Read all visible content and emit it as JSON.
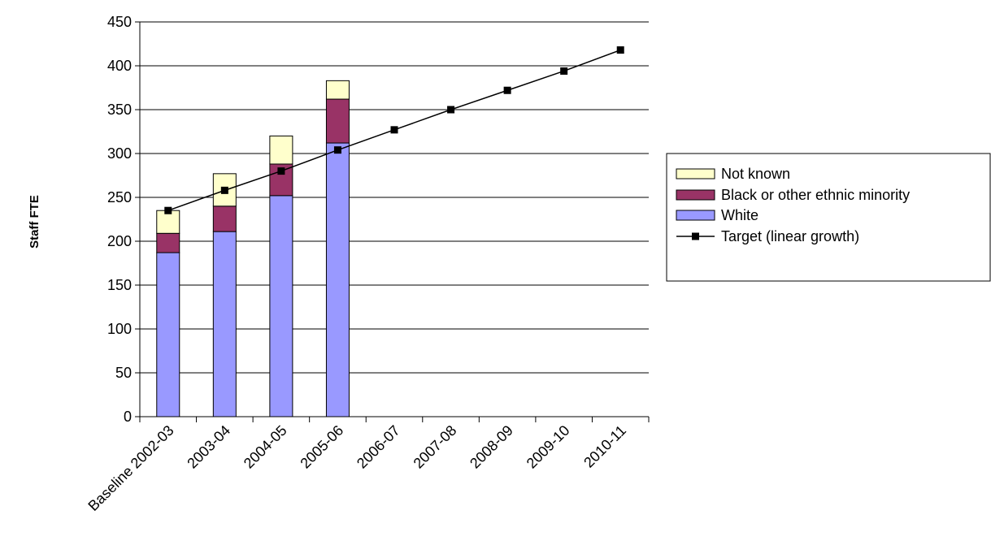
{
  "chart_data": {
    "type": "bar",
    "stacked": true,
    "title": "",
    "xlabel": "",
    "ylabel": "Staff FTE",
    "ylim": [
      0,
      450
    ],
    "yticks": [
      0,
      50,
      100,
      150,
      200,
      250,
      300,
      350,
      400,
      450
    ],
    "grid": true,
    "legend_position": "right",
    "categories": [
      "Baseline 2002-03",
      "2003-04",
      "2004-05",
      "2005-06",
      "2006-07",
      "2007-08",
      "2008-09",
      "2009-10",
      "2010-11"
    ],
    "series": [
      {
        "name": "White",
        "kind": "bar",
        "color": "#9999FF",
        "values": [
          187,
          211,
          252,
          312,
          null,
          null,
          null,
          null,
          null
        ]
      },
      {
        "name": "Black or other ethnic minority",
        "kind": "bar",
        "color": "#993366",
        "values": [
          22,
          29,
          36,
          50,
          null,
          null,
          null,
          null,
          null
        ]
      },
      {
        "name": "Not known",
        "kind": "bar",
        "color": "#FFFFCC",
        "values": [
          26,
          37,
          32,
          21,
          null,
          null,
          null,
          null,
          null
        ]
      },
      {
        "name": "Target (linear growth)",
        "kind": "line",
        "color": "#000000",
        "values": [
          235,
          258,
          280,
          304,
          327,
          350,
          372,
          394,
          418
        ]
      }
    ],
    "legend_order": [
      "Not known",
      "Black or other ethnic minority",
      "White",
      "Target (linear growth)"
    ]
  }
}
